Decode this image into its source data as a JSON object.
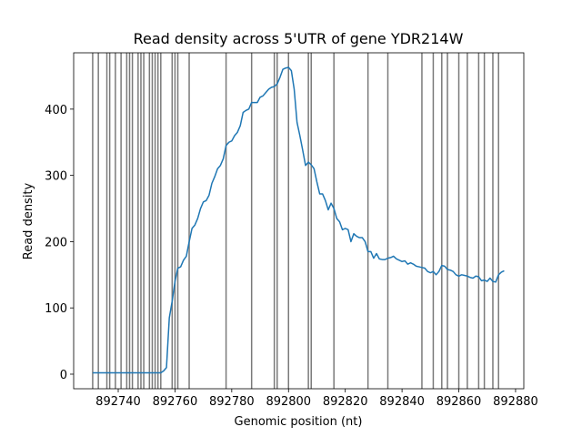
{
  "chart_data": {
    "type": "line",
    "title": "Read density across 5'UTR of gene YDR214W",
    "x_label": "Genomic position (nt)",
    "y_label": "Read density",
    "xlim": [
      892724.3,
      892882.9
    ],
    "ylim": [
      -22,
      485
    ],
    "xticks": [
      892740,
      892760,
      892780,
      892800,
      892820,
      892840,
      892860,
      892880
    ],
    "yticks": [
      0,
      100,
      200,
      300,
      400
    ],
    "color": "#1f77b4",
    "vline_color": "#7a7a7a",
    "vlines": [
      892731,
      892733,
      892736,
      892737,
      892739,
      892741,
      892743,
      892744,
      892745,
      892747,
      892748,
      892749,
      892751,
      892752,
      892753,
      892754,
      892755,
      892759,
      892760,
      892761,
      892765,
      892778,
      892787,
      892795,
      892796,
      892800,
      892807,
      892808,
      892816,
      892828,
      892835,
      892847,
      892851,
      892854,
      892856,
      892860,
      892863,
      892867,
      892869,
      892872,
      892874
    ],
    "x": [
      892731,
      892732,
      892733,
      892734,
      892735,
      892736,
      892737,
      892738,
      892739,
      892740,
      892741,
      892742,
      892743,
      892744,
      892745,
      892746,
      892747,
      892748,
      892749,
      892750,
      892751,
      892752,
      892753,
      892754,
      892755,
      892756,
      892757,
      892758,
      892759,
      892760,
      892761,
      892762,
      892763,
      892764,
      892765,
      892766,
      892767,
      892768,
      892769,
      892770,
      892771,
      892772,
      892773,
      892774,
      892775,
      892776,
      892777,
      892778,
      892779,
      892780,
      892781,
      892782,
      892783,
      892784,
      892785,
      892786,
      892787,
      892788,
      892789,
      892790,
      892791,
      892792,
      892793,
      892794,
      892795,
      892796,
      892797,
      892798,
      892799,
      892800,
      892801,
      892802,
      892803,
      892804,
      892805,
      892806,
      892807,
      892808,
      892809,
      892810,
      892811,
      892812,
      892813,
      892814,
      892815,
      892816,
      892817,
      892818,
      892819,
      892820,
      892821,
      892822,
      892823,
      892824,
      892825,
      892826,
      892827,
      892828,
      892829,
      892830,
      892831,
      892832,
      892833,
      892834,
      892835,
      892836,
      892837,
      892838,
      892839,
      892840,
      892841,
      892842,
      892843,
      892844,
      892845,
      892846,
      892847,
      892848,
      892849,
      892850,
      892851,
      892852,
      892853,
      892854,
      892855,
      892856,
      892857,
      892858,
      892859,
      892860,
      892861,
      892862,
      892863,
      892864,
      892865,
      892866,
      892867,
      892868,
      892869,
      892870,
      892871,
      892872,
      892873,
      892874,
      892875,
      892876
    ],
    "values": [
      2,
      2,
      2,
      2,
      2,
      2,
      2,
      2,
      2,
      2,
      2,
      2,
      2,
      2,
      2,
      2,
      2,
      2,
      2,
      2,
      2,
      2,
      2,
      2,
      2,
      5,
      10,
      85,
      110,
      140,
      160,
      162,
      172,
      178,
      200,
      220,
      225,
      235,
      250,
      260,
      262,
      270,
      288,
      298,
      310,
      315,
      325,
      345,
      350,
      352,
      360,
      365,
      375,
      395,
      398,
      400,
      410,
      410,
      410,
      418,
      420,
      425,
      430,
      433,
      434,
      438,
      448,
      460,
      462,
      463,
      458,
      430,
      380,
      360,
      338,
      315,
      320,
      316,
      310,
      290,
      272,
      272,
      262,
      248,
      258,
      250,
      235,
      230,
      218,
      220,
      218,
      200,
      212,
      208,
      206,
      206,
      200,
      185,
      185,
      175,
      182,
      174,
      173,
      173,
      175,
      176,
      178,
      174,
      172,
      170,
      171,
      166,
      168,
      166,
      163,
      162,
      161,
      160,
      155,
      153,
      155,
      150,
      155,
      164,
      163,
      158,
      157,
      155,
      150,
      148,
      150,
      149,
      148,
      146,
      145,
      148,
      147,
      141,
      142,
      140,
      145,
      140,
      139,
      150,
      154,
      156
    ]
  }
}
